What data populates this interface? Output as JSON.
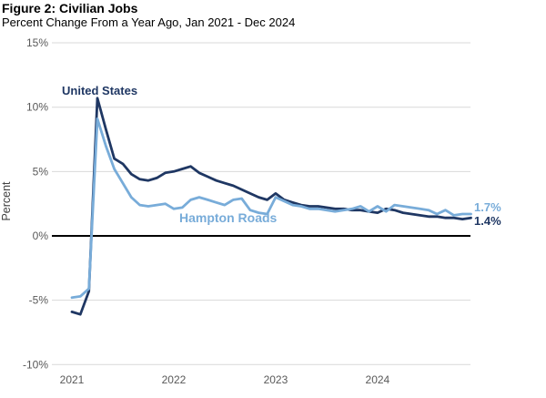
{
  "figure": {
    "title": "Figure 2: Civilian Jobs",
    "subtitle": "Percent Change From a Year Ago, Jan 2021 - Dec 2024"
  },
  "chart_data": {
    "type": "line",
    "title": "Figure 2: Civilian Jobs",
    "subtitle": "Percent Change From a Year Ago, Jan 2021 - Dec 2024",
    "xlabel": "",
    "ylabel": "Percent",
    "x_frequency": "monthly",
    "x_range": "Jan 2021 - Dec 2024",
    "x_tick_labels": [
      "2021",
      "2022",
      "2023",
      "2024"
    ],
    "ylim": [
      -10,
      15
    ],
    "y_ticks": [
      {
        "label": "15%",
        "value": 15
      },
      {
        "label": "10%",
        "value": 10
      },
      {
        "label": "5%",
        "value": 5
      },
      {
        "label": "0%",
        "value": 0
      },
      {
        "label": "-5%",
        "value": -5
      },
      {
        "label": "-10%",
        "value": -10
      }
    ],
    "grid": "horizontal",
    "zero_line": true,
    "legend_position": "inline-labels",
    "colors": {
      "grid": "#D9D9D9",
      "zero_line": "#000000",
      "tick_text": "#595959",
      "axis_label_text": "#404040"
    },
    "series": [
      {
        "name": "United States",
        "color": "#1F3763",
        "end_label": "1.4%",
        "values": [
          -5.9,
          -6.1,
          -4.3,
          10.7,
          8.3,
          6.0,
          5.6,
          4.8,
          4.4,
          4.3,
          4.5,
          4.9,
          5.0,
          5.2,
          5.4,
          4.9,
          4.6,
          4.3,
          4.1,
          3.9,
          3.6,
          3.3,
          3.0,
          2.8,
          3.3,
          2.8,
          2.6,
          2.4,
          2.3,
          2.3,
          2.2,
          2.1,
          2.1,
          2.0,
          2.0,
          1.9,
          1.8,
          2.1,
          2.0,
          1.8,
          1.7,
          1.6,
          1.5,
          1.5,
          1.4,
          1.4,
          1.3,
          1.4
        ]
      },
      {
        "name": "Hampton Roads",
        "color": "#78ACD9",
        "end_label": "1.7%",
        "values": [
          -4.8,
          -4.7,
          -4.1,
          9.1,
          7.0,
          5.2,
          4.1,
          3.0,
          2.4,
          2.3,
          2.4,
          2.5,
          2.1,
          2.2,
          2.8,
          3.0,
          2.8,
          2.6,
          2.4,
          2.8,
          2.9,
          2.0,
          1.8,
          1.7,
          3.0,
          2.7,
          2.4,
          2.3,
          2.1,
          2.1,
          2.0,
          1.9,
          2.0,
          2.1,
          2.3,
          1.9,
          2.3,
          1.9,
          2.4,
          2.3,
          2.2,
          2.1,
          2.0,
          1.7,
          2.0,
          1.6,
          1.7,
          1.7
        ]
      }
    ]
  }
}
